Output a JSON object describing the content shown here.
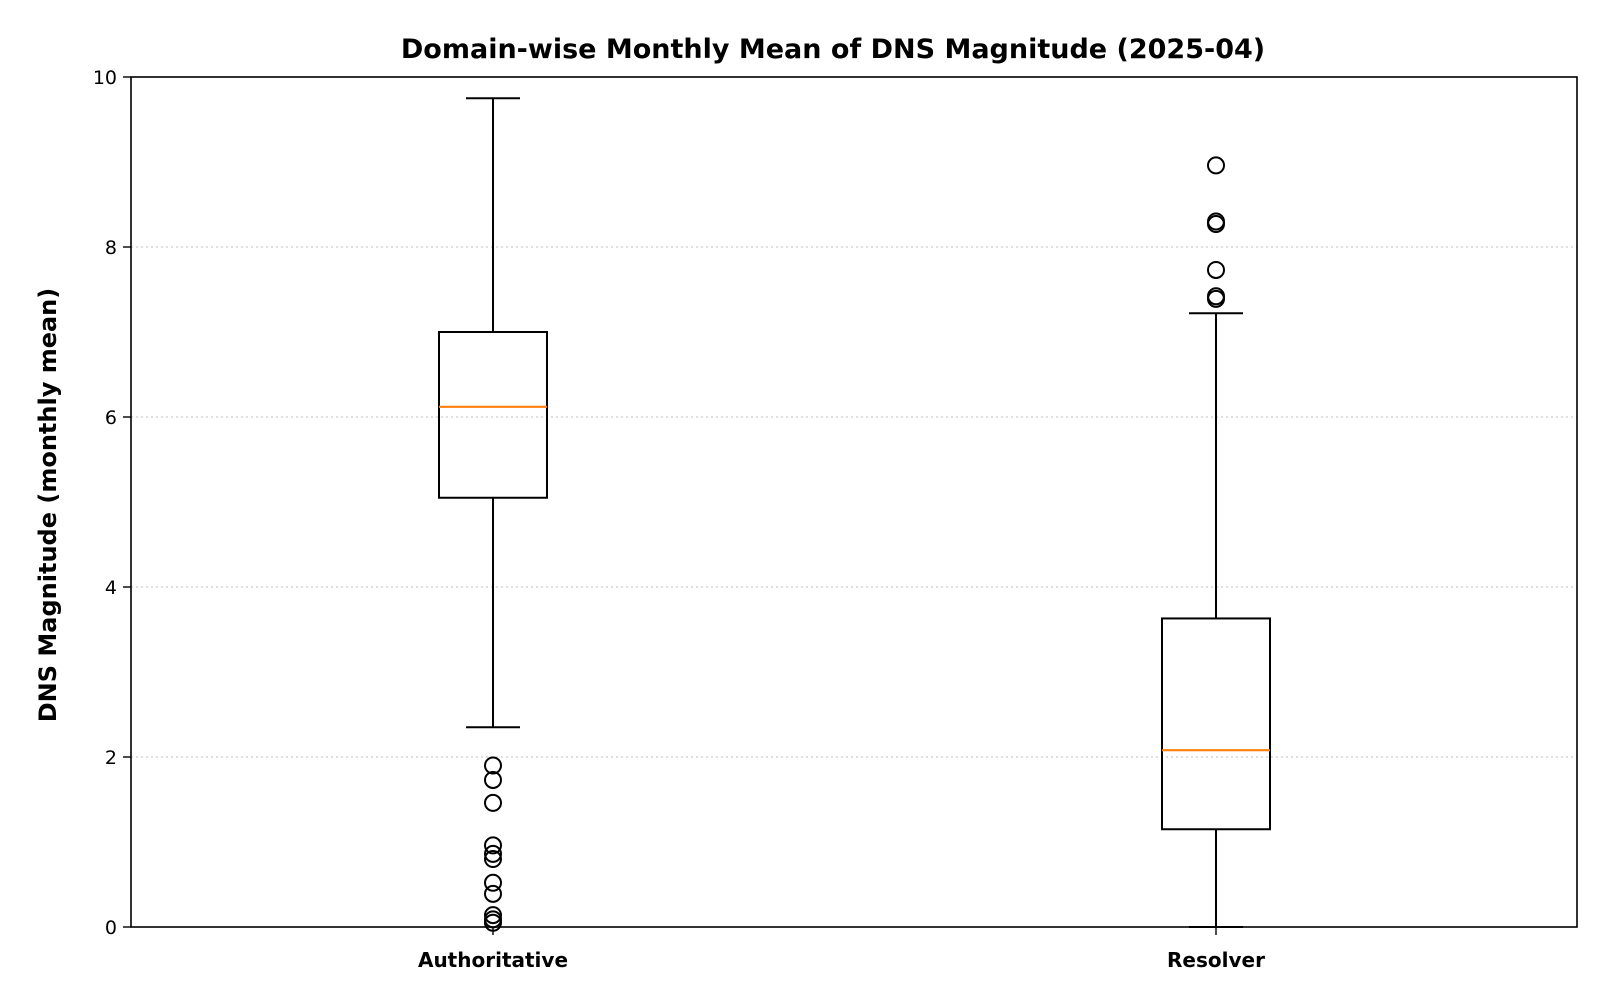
{
  "chart_data": {
    "type": "box",
    "title": "Domain-wise Monthly Mean of DNS Magnitude (2025-04)",
    "xlabel": "",
    "ylabel": "DNS Magnitude (monthly mean)",
    "ylim": [
      0,
      10
    ],
    "yticks": [
      0,
      2,
      4,
      6,
      8,
      10
    ],
    "ytick_labels": [
      "0",
      "2",
      "4",
      "6",
      "8",
      "10"
    ],
    "grid": {
      "y": true,
      "style": "dotted"
    },
    "categories": [
      "Authoritative",
      "Resolver"
    ],
    "series": [
      {
        "category": "Authoritative",
        "whisker_low": 2.35,
        "q1": 5.05,
        "median": 6.12,
        "q3": 7.0,
        "whisker_high": 9.75,
        "outliers": [
          1.9,
          1.73,
          1.46,
          0.96,
          0.86,
          0.8,
          0.52,
          0.39,
          0.14,
          0.09,
          0.05
        ]
      },
      {
        "category": "Resolver",
        "whisker_low": 0.0,
        "q1": 1.15,
        "median": 2.08,
        "q3": 3.63,
        "whisker_high": 7.22,
        "outliers": [
          8.96,
          8.3,
          8.27,
          7.73,
          7.42,
          7.39
        ]
      }
    ],
    "colors": {
      "box": "#000000",
      "median": "#ff7f0e",
      "grid": "#cccccc"
    }
  }
}
